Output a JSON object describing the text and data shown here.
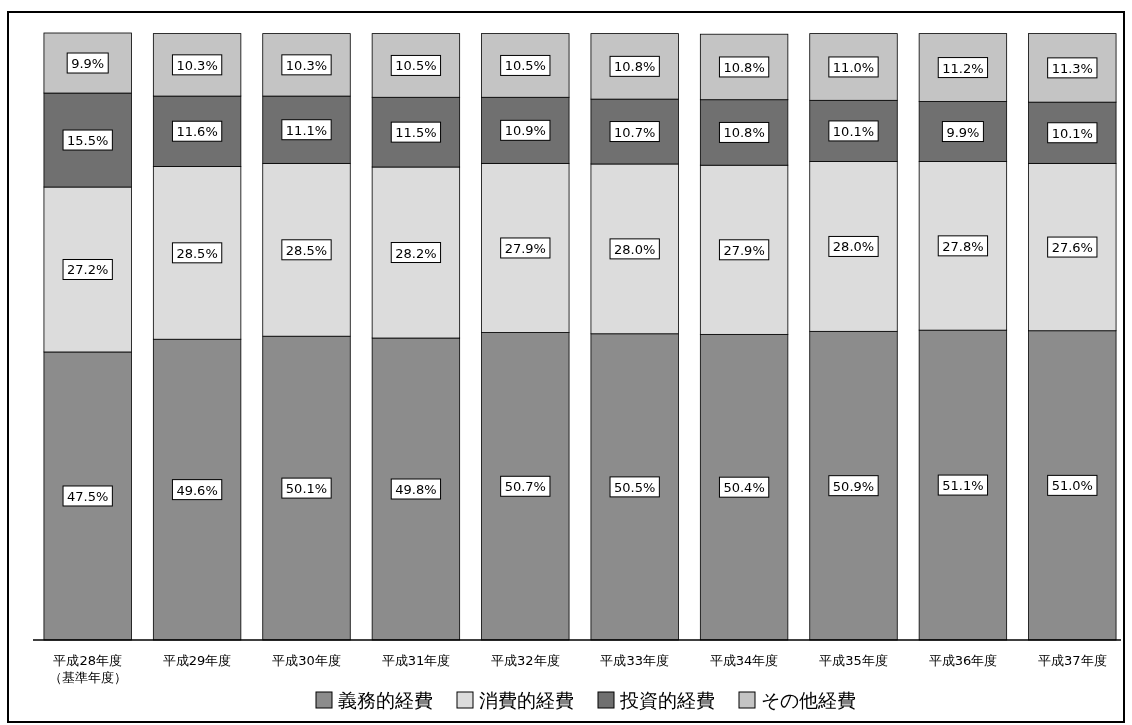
{
  "chart_data": {
    "type": "bar",
    "stacked": true,
    "legend": "bottom",
    "categories": [
      "平成28年度（基準年度）",
      "平成29年度",
      "平成30年度",
      "平成31年度",
      "平成32年度",
      "平成33年度",
      "平成34年度",
      "平成35年度",
      "平成36年度",
      "平成37年度"
    ],
    "series": [
      {
        "name": "義務的経費",
        "color": "#8c8c8c",
        "values": [
          47.5,
          49.6,
          50.1,
          49.8,
          50.7,
          50.5,
          50.4,
          50.9,
          51.1,
          51.0
        ],
        "value_labels": [
          "47.5%",
          "49.6%",
          "50.1%",
          "49.8%",
          "50.7%",
          "50.5%",
          "50.4%",
          "50.9%",
          "51.1%",
          "51.0%"
        ]
      },
      {
        "name": "消費的経費",
        "color": "#dcdcdc",
        "values": [
          27.2,
          28.5,
          28.5,
          28.2,
          27.9,
          28.0,
          27.9,
          28.0,
          27.8,
          27.6
        ],
        "value_labels": [
          "27.2%",
          "28.5%",
          "28.5%",
          "28.2%",
          "27.9%",
          "28.0%",
          "27.9%",
          "28.0%",
          "27.8%",
          "27.6%"
        ]
      },
      {
        "name": "投資的経費",
        "color": "#707070",
        "values": [
          15.5,
          11.6,
          11.1,
          11.5,
          10.9,
          10.7,
          10.8,
          10.1,
          9.9,
          10.1
        ],
        "value_labels": [
          "15.5%",
          "11.6%",
          "11.1%",
          "11.5%",
          "10.9%",
          "10.7%",
          "10.8%",
          "10.1%",
          "9.9%",
          "10.1%"
        ]
      },
      {
        "name": "その他経費",
        "color": "#c4c4c4",
        "values": [
          9.9,
          10.3,
          10.3,
          10.5,
          10.5,
          10.8,
          10.8,
          11.0,
          11.2,
          11.3
        ],
        "value_labels": [
          "9.9%",
          "10.3%",
          "10.3%",
          "10.5%",
          "10.5%",
          "10.8%",
          "10.8%",
          "11.0%",
          "11.2%",
          "11.3%"
        ]
      }
    ]
  }
}
